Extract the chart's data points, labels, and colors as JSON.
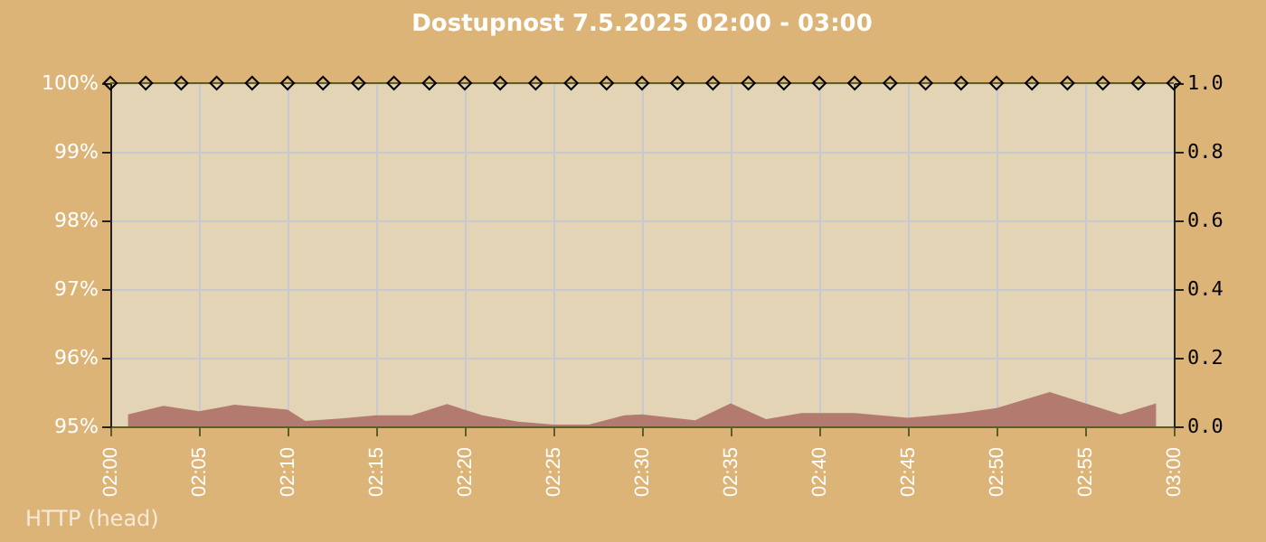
{
  "chart_data": {
    "type": "line",
    "title": "Dostupnost 7.5.2025 02:00 - 03:00",
    "annotations": [
      "HTTP (head)"
    ],
    "x": [
      "2025-05-07T02:00",
      "2025-05-07T02:02",
      "2025-05-07T02:04",
      "2025-05-07T02:06",
      "2025-05-07T02:08",
      "2025-05-07T02:10",
      "2025-05-07T02:12",
      "2025-05-07T02:14",
      "2025-05-07T02:16",
      "2025-05-07T02:18",
      "2025-05-07T02:20",
      "2025-05-07T02:22",
      "2025-05-07T02:24",
      "2025-05-07T02:26",
      "2025-05-07T02:28",
      "2025-05-07T02:30",
      "2025-05-07T02:32",
      "2025-05-07T02:34",
      "2025-05-07T02:36",
      "2025-05-07T02:38",
      "2025-05-07T02:40",
      "2025-05-07T02:42",
      "2025-05-07T02:44",
      "2025-05-07T02:46",
      "2025-05-07T02:48",
      "2025-05-07T02:50",
      "2025-05-07T02:52",
      "2025-05-07T02:54",
      "2025-05-07T02:56",
      "2025-05-07T02:58",
      "2025-05-07T03:00"
    ],
    "series": [
      {
        "type": "line",
        "color": "#5c5c2e",
        "marker": "diamond",
        "values": [
          100,
          100,
          100,
          100,
          100,
          100,
          100,
          100,
          100,
          100,
          100,
          100,
          100,
          100,
          100,
          100,
          100,
          100,
          100,
          100,
          100,
          100,
          100,
          100,
          100,
          100,
          100,
          100,
          100,
          100,
          100
        ]
      },
      {
        "type": "area",
        "axis": "y2",
        "color": "#b37a70",
        "x": [
          "2025-05-07T02:01",
          "2025-05-07T02:03",
          "2025-05-07T02:05",
          "2025-05-07T02:07",
          "2025-05-07T02:10",
          "2025-05-07T02:11",
          "2025-05-07T02:13",
          "2025-05-07T02:15",
          "2025-05-07T02:17",
          "2025-05-07T02:19",
          "2025-05-07T02:21",
          "2025-05-07T02:23",
          "2025-05-07T02:25",
          "2025-05-07T02:27",
          "2025-05-07T02:29",
          "2025-05-07T02:30",
          "2025-05-07T02:33",
          "2025-05-07T02:35",
          "2025-05-07T02:37",
          "2025-05-07T02:39",
          "2025-05-07T02:42",
          "2025-05-07T02:45",
          "2025-05-07T02:48",
          "2025-05-07T02:50",
          "2025-05-07T02:53",
          "2025-05-07T02:57",
          "2025-05-07T02:59"
        ],
        "values": [
          0.035,
          0.06,
          0.044,
          0.063,
          0.049,
          0.016,
          0.023,
          0.032,
          0.032,
          0.065,
          0.032,
          0.014,
          0.005,
          0.005,
          0.032,
          0.035,
          0.018,
          0.067,
          0.021,
          0.039,
          0.039,
          0.025,
          0.039,
          0.053,
          0.1,
          0.035,
          0.067
        ]
      }
    ],
    "xlim": [
      "2025-05-07T02:00",
      "2025-05-07T03:00"
    ],
    "xticks": [
      {
        "value": "2025-05-07T02:00",
        "label": "02:00"
      },
      {
        "value": "2025-05-07T02:05",
        "label": "02:05"
      },
      {
        "value": "2025-05-07T02:10",
        "label": "02:10"
      },
      {
        "value": "2025-05-07T02:15",
        "label": "02:15"
      },
      {
        "value": "2025-05-07T02:20",
        "label": "02:20"
      },
      {
        "value": "2025-05-07T02:25",
        "label": "02:25"
      },
      {
        "value": "2025-05-07T02:30",
        "label": "02:30"
      },
      {
        "value": "2025-05-07T02:35",
        "label": "02:35"
      },
      {
        "value": "2025-05-07T02:40",
        "label": "02:40"
      },
      {
        "value": "2025-05-07T02:45",
        "label": "02:45"
      },
      {
        "value": "2025-05-07T02:50",
        "label": "02:50"
      },
      {
        "value": "2025-05-07T02:55",
        "label": "02:55"
      },
      {
        "value": "2025-05-07T03:00",
        "label": "03:00"
      }
    ],
    "ylim": [
      95,
      100
    ],
    "yticks": [
      {
        "value": 95,
        "label": "95%"
      },
      {
        "value": 96,
        "label": "96%"
      },
      {
        "value": 97,
        "label": "97%"
      },
      {
        "value": 98,
        "label": "98%"
      },
      {
        "value": 99,
        "label": "99%"
      },
      {
        "value": 100,
        "label": "100%"
      }
    ],
    "y2lim": [
      0,
      1
    ],
    "y2ticks": [
      {
        "value": 0,
        "label": "0.0"
      },
      {
        "value": 0.2,
        "label": "0.2"
      },
      {
        "value": 0.4,
        "label": "0.4"
      },
      {
        "value": 0.6,
        "label": "0.6"
      },
      {
        "value": 0.8,
        "label": "0.8"
      },
      {
        "value": 1,
        "label": "1.0"
      }
    ],
    "grid": true
  }
}
